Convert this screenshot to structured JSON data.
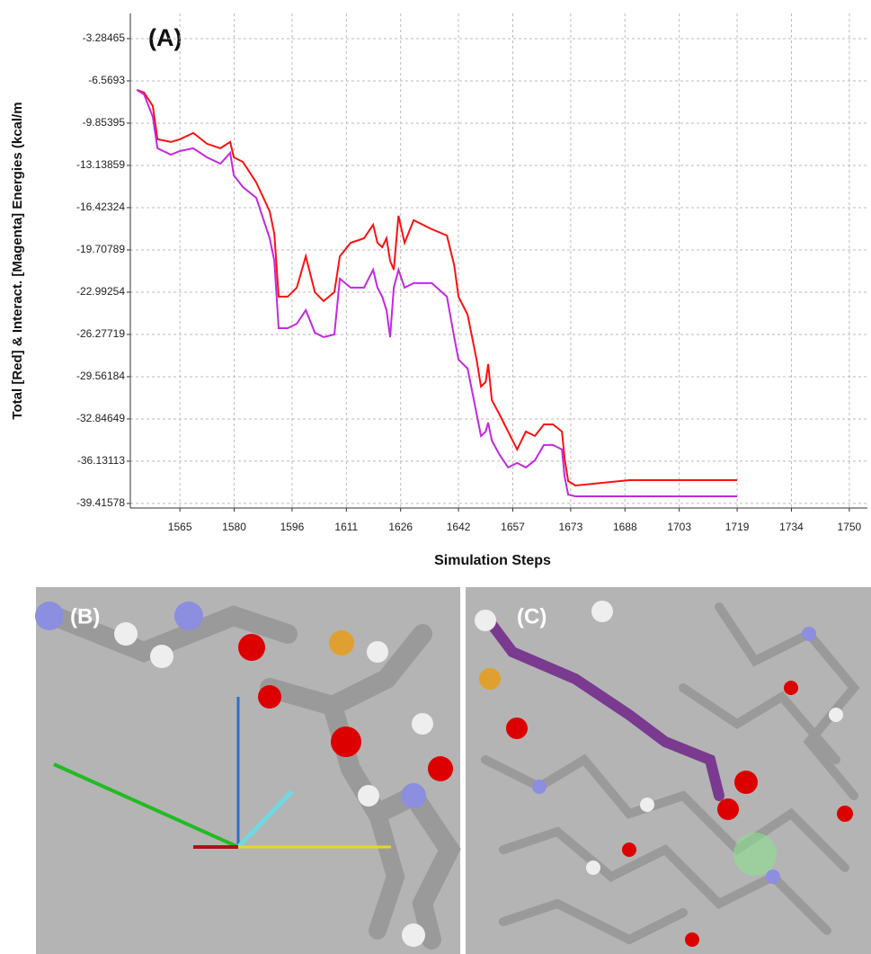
{
  "chart_data": {
    "type": "line",
    "annotation": "(A)",
    "y_label": "Total [Red] & Interact. [Magenta] Energies (kcal/m",
    "x_label": "Simulation Steps",
    "x": [
      1553.1,
      1555.1,
      1557.5,
      1558.8,
      1562.5,
      1565,
      1568.7,
      1572.5,
      1576.2,
      1578.9,
      1579.9,
      1582.4,
      1586.1,
      1589.8,
      1591.1,
      1592.3,
      1594.8,
      1597.3,
      1599.8,
      1602.3,
      1604.7,
      1607.7,
      1609.2,
      1612.2,
      1615.9,
      1618.4,
      1619.6,
      1620.9,
      1622.1,
      1623.1,
      1624.1,
      1625.4,
      1627.1,
      1629.6,
      1634.6,
      1638.8,
      1640.8,
      1642,
      1644.5,
      1647,
      1648.2,
      1649.5,
      1650.2,
      1651.2,
      1653.2,
      1655.7,
      1658.2,
      1660.6,
      1663.1,
      1665.6,
      1668.1,
      1670.6,
      1671.3,
      1672.3,
      1674.3,
      1689.2,
      1704.1,
      1719
    ],
    "series": [
      {
        "color": "#ff1010",
        "values": [
          -7.27,
          -7.48,
          -8.53,
          -11.11,
          -11.32,
          -11.11,
          -10.62,
          -11.46,
          -11.81,
          -11.32,
          -12.51,
          -12.86,
          -14.47,
          -16.7,
          -18.45,
          -23.34,
          -23.34,
          -22.64,
          -20.2,
          -22.99,
          -23.69,
          -22.99,
          -20.2,
          -19.15,
          -18.8,
          -17.75,
          -19.15,
          -19.5,
          -18.8,
          -20.55,
          -21.25,
          -17.05,
          -19.15,
          -17.4,
          -18.1,
          -18.59,
          -20.9,
          -23.34,
          -24.74,
          -28.23,
          -30.33,
          -29.98,
          -28.58,
          -31.38,
          -32.43,
          -33.83,
          -35.22,
          -33.83,
          -34.17,
          -33.27,
          -33.27,
          -33.83,
          -35.92,
          -37.67,
          -38.02,
          -37.6,
          -37.6,
          -37.6
        ]
      },
      {
        "color": "#c428e0",
        "values": [
          -7.27,
          -7.62,
          -9.37,
          -11.81,
          -12.3,
          -12.02,
          -11.81,
          -12.51,
          -13.0,
          -12.16,
          -13.91,
          -14.82,
          -15.66,
          -18.8,
          -20.55,
          -25.79,
          -25.79,
          -25.44,
          -24.39,
          -26.14,
          -26.49,
          -26.28,
          -21.95,
          -22.64,
          -22.64,
          -21.25,
          -22.64,
          -23.34,
          -24.39,
          -26.49,
          -22.64,
          -21.25,
          -22.64,
          -22.29,
          -22.29,
          -23.34,
          -26.49,
          -28.23,
          -28.93,
          -32.43,
          -34.17,
          -33.83,
          -33.13,
          -34.52,
          -35.57,
          -36.62,
          -36.27,
          -36.62,
          -36.06,
          -34.87,
          -34.87,
          -35.22,
          -37.32,
          -38.72,
          -38.86,
          -38.86,
          -38.86,
          -38.86
        ]
      }
    ],
    "xlim": [
      1551.3,
      1755
    ],
    "xticks": [
      1565,
      1580,
      1596,
      1611,
      1626,
      1642,
      1657,
      1673,
      1688,
      1703,
      1719,
      1734,
      1750
    ],
    "ylim": [
      -39.77,
      -1.33
    ],
    "yticks": [
      -3.28465,
      -6.5693,
      -9.85395,
      -13.13859,
      -16.42324,
      -19.70789,
      -22.99254,
      -26.27719,
      -29.56184,
      -32.84649,
      -36.13113,
      -39.41578
    ],
    "grid": true
  },
  "panels": [
    {
      "label": "(B)"
    },
    {
      "label": "(C)"
    }
  ]
}
